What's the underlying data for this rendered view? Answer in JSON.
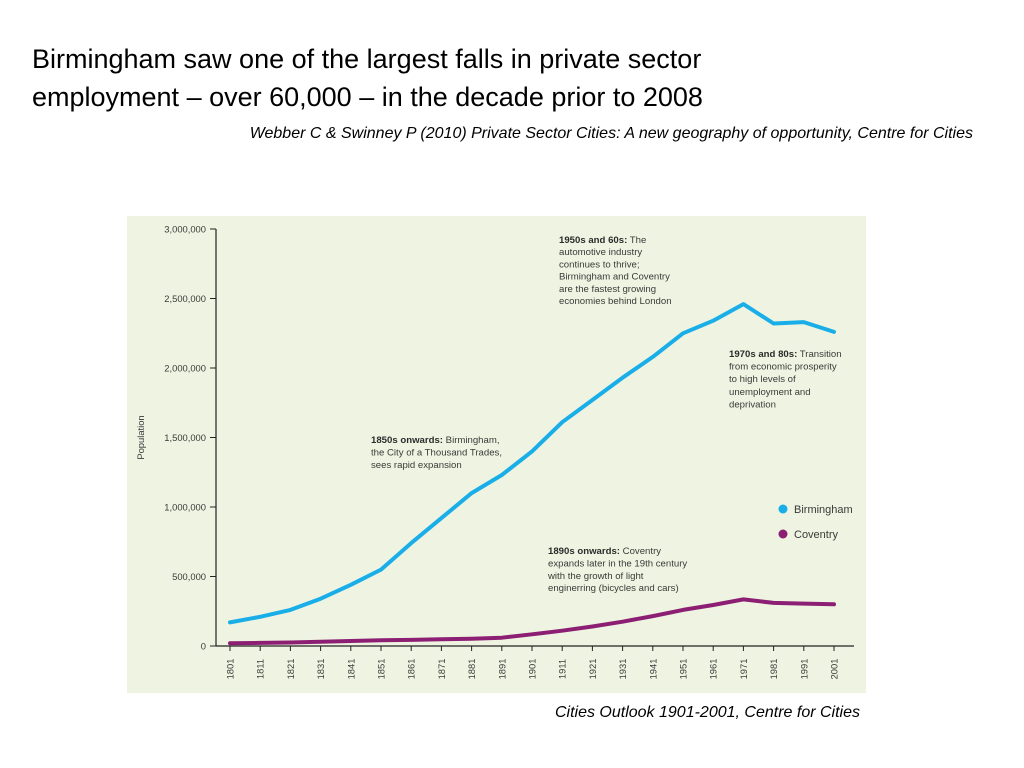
{
  "slide": {
    "title_lines": [
      "Birmingham saw one of the largest falls in private sector",
      "employment – over 60,000 – in the decade prior to 2008"
    ],
    "citation": "Webber C & Swinney P (2010) Private Sector Cities: A new geography of opportunity, Centre for Cities",
    "source": "Cities Outlook 1901-2001, Centre for Cities"
  },
  "chart_data": {
    "type": "line",
    "ylabel": "Population",
    "xlabel": "",
    "ylim": [
      0,
      3000000
    ],
    "grid": false,
    "legend_position": "right",
    "y_ticks": [
      {
        "value": 0,
        "label": "0"
      },
      {
        "value": 500000,
        "label": "500,000"
      },
      {
        "value": 1000000,
        "label": "1,000,000"
      },
      {
        "value": 1500000,
        "label": "1,500,000"
      },
      {
        "value": 2000000,
        "label": "2,000,000"
      },
      {
        "value": 2500000,
        "label": "2,500,000"
      },
      {
        "value": 3000000,
        "label": "3,000,000"
      }
    ],
    "x": [
      "1801",
      "1811",
      "1821",
      "1831",
      "1841",
      "1851",
      "1861",
      "1871",
      "1881",
      "1891",
      "1901",
      "1911",
      "1921",
      "1931",
      "1941",
      "1951",
      "1961",
      "1971",
      "1981",
      "1991",
      "2001"
    ],
    "series": [
      {
        "name": "Birmingham",
        "color": "#1aaee8",
        "values": [
          170000,
          210000,
          260000,
          340000,
          440000,
          550000,
          740000,
          920000,
          1100000,
          1230000,
          1400000,
          1610000,
          1770000,
          1930000,
          2080000,
          2250000,
          2340000,
          2460000,
          2320000,
          2330000,
          2260000
        ]
      },
      {
        "name": "Coventry",
        "color": "#8c1f73",
        "values": [
          20000,
          22000,
          25000,
          31000,
          36000,
          41000,
          44000,
          48000,
          52000,
          60000,
          84000,
          110000,
          140000,
          175000,
          215000,
          260000,
          295000,
          335000,
          310000,
          305000,
          300000
        ]
      }
    ],
    "annotations": [
      {
        "id": "1850s",
        "bold": "1850s onwards:",
        "lines": [
          " Birmingham,",
          "the City of a Thousand Trades,",
          "sees rapid expansion"
        ]
      },
      {
        "id": "1950s",
        "bold": "1950s and 60s:",
        "lines": [
          " The",
          "automotive industry",
          "continues to thrive;",
          "Birmingham and Coventry",
          "are the fastest growing",
          "economies behind London"
        ]
      },
      {
        "id": "1970s",
        "bold": "1970s and 80s:",
        "lines": [
          " Transition",
          "from economic prosperity",
          "to high levels of",
          "unemployment and",
          "deprivation"
        ]
      },
      {
        "id": "1890s",
        "bold": "1890s onwards:",
        "lines": [
          " Coventry",
          "expands later in the 19th century",
          "with the growth of light",
          "enginerring (bicycles and cars)"
        ]
      }
    ]
  }
}
